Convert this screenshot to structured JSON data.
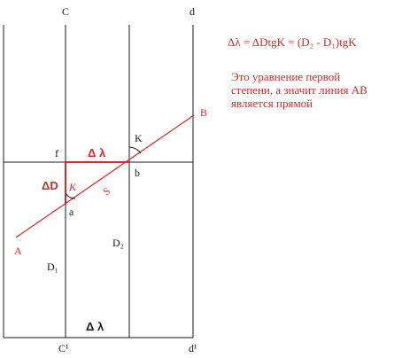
{
  "formula": {
    "text": "Δλ = ΔDtgK = (D₂ - D₁)tgK"
  },
  "note": {
    "lines": [
      "Это уравнение первой",
      "степени, а значит линия АВ",
      "является прямой"
    ]
  },
  "labels": {
    "top_c": "C",
    "top_d": "d",
    "bottom_c": "C¹",
    "bottom_d": "d¹",
    "point_a_upper": "A",
    "point_b_upper": "B",
    "point_f": "f",
    "point_b": "b",
    "point_a": "a",
    "delta_lambda_top": "Δ λ",
    "delta_lambda_bottom": "Δ λ",
    "delta_d": "ΔD",
    "k_upper": "K",
    "k_lower": "K",
    "s": "S",
    "d1": "D₁",
    "d2": "D₂"
  },
  "colors": {
    "line": "#1a1a1a",
    "accent": "#d42a2a"
  }
}
